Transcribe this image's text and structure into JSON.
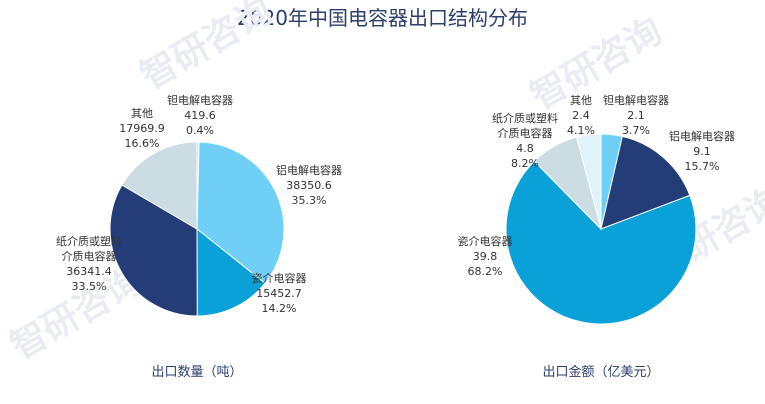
{
  "title": "2020年中国电容器出口结构分布",
  "watermark": "智研咨询",
  "colors": {
    "鉭电解电容器": "#6fcff6",
    "铝电解电容器": "#6fcff6",
    "瓷介电容器": "#0aa0d8",
    "纸介质或塑料介质电容器": "#243c78",
    "其他": "#ccdce3",
    "title": "#2e3f6e"
  },
  "chart_data": [
    {
      "type": "pie",
      "xlabel": "出口数量（吨）",
      "slices": [
        {
          "name": "鉭电解电容器",
          "label_lines": [
            "钽电解电容器",
            "419.6",
            "0.4%"
          ],
          "value": 419.6,
          "percent": 0.4,
          "color": "#a9e3f8"
        },
        {
          "name": "铝电解电容器",
          "label_lines": [
            "铝电解电容器",
            "38350.6",
            "35.3%"
          ],
          "value": 38350.6,
          "percent": 35.3,
          "color": "#6fcff6"
        },
        {
          "name": "瓷介电容器",
          "label_lines": [
            "瓷介电容器",
            "15452.7",
            "14.2%"
          ],
          "value": 15452.7,
          "percent": 14.2,
          "color": "#0aa0d8"
        },
        {
          "name": "纸介质或塑料介质电容器",
          "label_lines": [
            "纸介质或塑料",
            "介质电容器",
            "36341.4",
            "33.5%"
          ],
          "value": 36341.4,
          "percent": 33.5,
          "color": "#243c78"
        },
        {
          "name": "其他",
          "label_lines": [
            "其他",
            "17969.9",
            "16.6%"
          ],
          "value": 17969.9,
          "percent": 16.6,
          "color": "#ccdce3"
        }
      ]
    },
    {
      "type": "pie",
      "xlabel": "出口金额（亿美元）",
      "slices": [
        {
          "name": "鉭电解电容器",
          "label_lines": [
            "钽电解电容器",
            "2.1",
            "3.7%"
          ],
          "value": 2.1,
          "percent": 3.7,
          "color": "#6fcff6"
        },
        {
          "name": "铝电解电容器",
          "label_lines": [
            "铝电解电容器",
            "9.1",
            "15.7%"
          ],
          "value": 9.1,
          "percent": 15.7,
          "color": "#243c78"
        },
        {
          "name": "瓷介电容器",
          "label_lines": [
            "瓷介电容器",
            "39.8",
            "68.2%"
          ],
          "value": 39.8,
          "percent": 68.2,
          "color": "#0aa0d8"
        },
        {
          "name": "纸介质或塑料介质电容器",
          "label_lines": [
            "纸介质或塑料",
            "介质电容器",
            "4.8",
            "8.2%"
          ],
          "value": 4.8,
          "percent": 8.2,
          "color": "#ccdce3"
        },
        {
          "name": "其他",
          "label_lines": [
            "其他",
            "2.4",
            "4.1%"
          ],
          "value": 2.4,
          "percent": 4.1,
          "color": "#e0f3fb"
        }
      ]
    }
  ]
}
